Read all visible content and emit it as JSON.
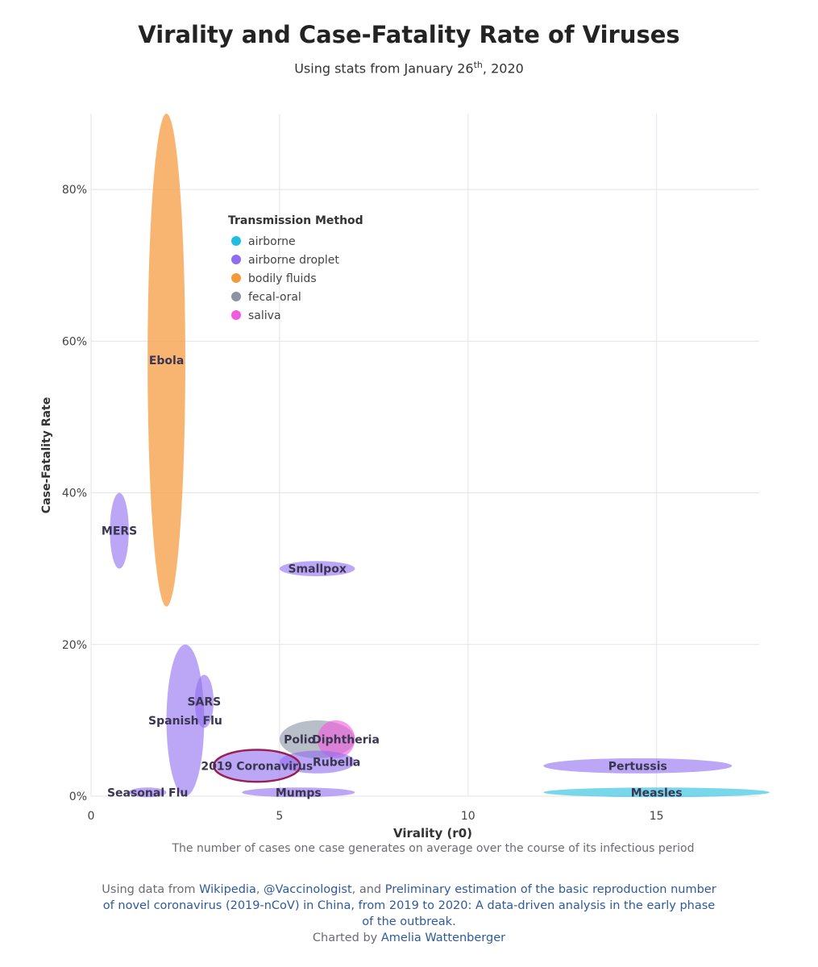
{
  "page": {
    "title": "Virality and Case-Fatality Rate of Viruses",
    "subtitle_pre": "Using stats from January 26",
    "subtitle_sup": "th",
    "subtitle_post": ", 2020",
    "caption": "The number of cases one case generates on average over the course of its infectious period",
    "source": {
      "pre": "Using data from ",
      "link1": "Wikipedia",
      "sep1": ", ",
      "link2": "@Vaccinologist",
      "sep2": ", and ",
      "link3a": "Preliminary estimation of the basic reproduction number",
      "link3b": "of novel coronavirus (2019-nCoV) in China, from 2019 to 2020: A data-driven analysis in the early phase",
      "link3c": "of the outbreak.",
      "charted_pre": "Charted by ",
      "author": "Amelia Wattenberger"
    }
  },
  "chart_data": {
    "type": "scatter",
    "title": "Virality and Case-Fatality Rate of Viruses",
    "xlabel": "Virality (r0)",
    "ylabel": "Case-Fatality Rate",
    "xlim": [
      0,
      18
    ],
    "ylim": [
      0,
      90
    ],
    "xticks": [
      0,
      5,
      10,
      15
    ],
    "yticks": [
      0,
      20,
      40,
      60,
      80
    ],
    "ytick_suffix": "%",
    "grid": true,
    "legend_title": "Transmission Method",
    "legend_position": "top-left",
    "legend": [
      {
        "name": "airborne",
        "color": "#1fbde0"
      },
      {
        "name": "airborne droplet",
        "color": "#8f6cf0"
      },
      {
        "name": "bodily fluids",
        "color": "#f5993a"
      },
      {
        "name": "fecal-oral",
        "color": "#8a94a4"
      },
      {
        "name": "saliva",
        "color": "#f25ae0"
      }
    ],
    "points": [
      {
        "label": "Ebola",
        "method": "bodily fluids",
        "r0": [
          1.5,
          2.5
        ],
        "cfr": [
          25,
          90
        ]
      },
      {
        "label": "MERS",
        "method": "airborne droplet",
        "r0": [
          0.5,
          1.0
        ],
        "cfr": [
          30,
          40
        ]
      },
      {
        "label": "Smallpox",
        "method": "airborne droplet",
        "r0": [
          5,
          7
        ],
        "cfr": [
          29,
          31
        ]
      },
      {
        "label": "Spanish Flu",
        "method": "airborne droplet",
        "r0": [
          2,
          3
        ],
        "cfr": [
          0,
          20
        ]
      },
      {
        "label": "SARS",
        "method": "airborne droplet",
        "r0": [
          2.75,
          3.25
        ],
        "cfr": [
          9,
          16
        ]
      },
      {
        "label": "Polio",
        "method": "fecal-oral",
        "r0": [
          5,
          7
        ],
        "cfr": [
          5,
          10
        ]
      },
      {
        "label": "Diphtheria",
        "method": "saliva",
        "r0": [
          6,
          7
        ],
        "cfr": [
          5,
          10
        ]
      },
      {
        "label": "Rubella",
        "method": "airborne droplet",
        "r0": [
          5,
          7
        ],
        "cfr": [
          3,
          6
        ]
      },
      {
        "label": "2019 Coronavirus",
        "method": "airborne droplet",
        "r0": [
          3.3,
          5.5
        ],
        "cfr": [
          2,
          6
        ],
        "highlight": true
      },
      {
        "label": "Seasonal Flu",
        "method": "airborne droplet",
        "r0": [
          1,
          2
        ],
        "cfr": [
          0,
          1
        ]
      },
      {
        "label": "Mumps",
        "method": "airborne droplet",
        "r0": [
          4,
          7
        ],
        "cfr": [
          0,
          1
        ]
      },
      {
        "label": "Pertussis",
        "method": "airborne droplet",
        "r0": [
          12,
          17
        ],
        "cfr": [
          3,
          5
        ]
      },
      {
        "label": "Measles",
        "method": "airborne",
        "r0": [
          12,
          18
        ],
        "cfr": [
          0,
          1
        ]
      }
    ]
  }
}
